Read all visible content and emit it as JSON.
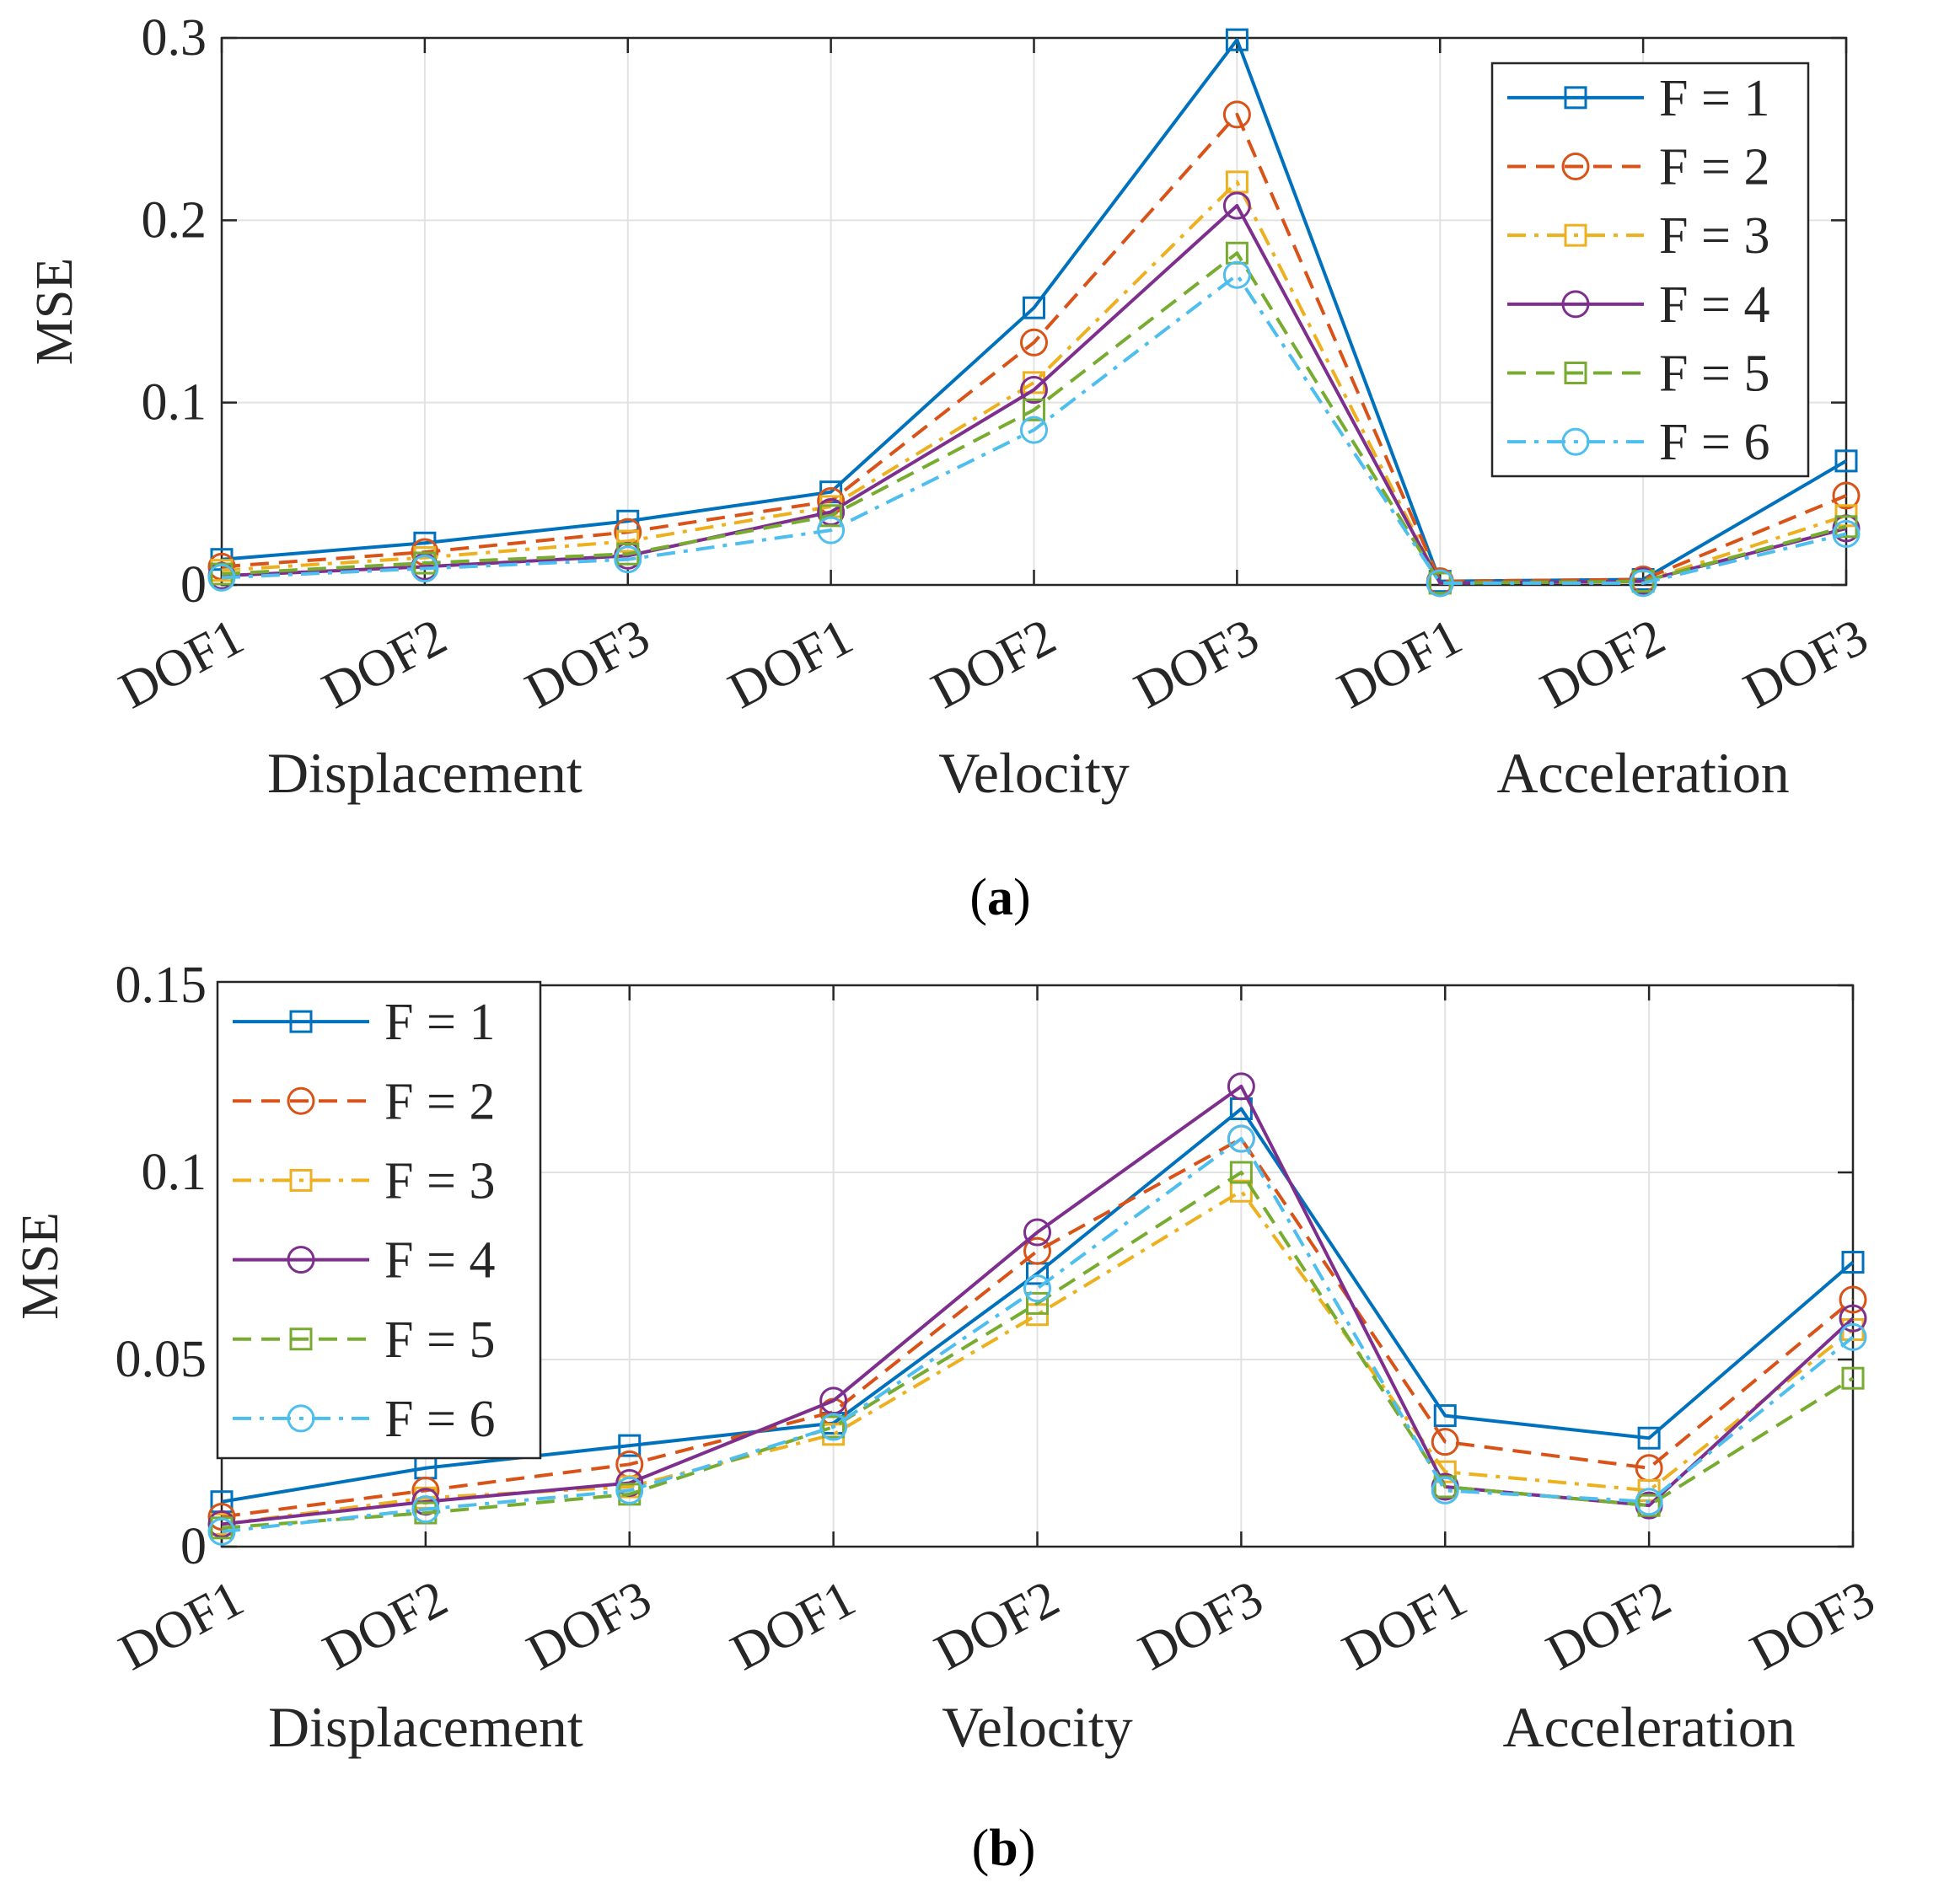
{
  "chart_data": [
    {
      "type": "line",
      "panel": "a",
      "caption_letter": "a",
      "ylabel": "MSE",
      "ylim": [
        0,
        0.3
      ],
      "yticks": [
        0,
        0.1,
        0.2,
        0.3
      ],
      "ytick_labels": [
        "0",
        "0.1",
        "0.2",
        "0.3"
      ],
      "categories": [
        "DOF1",
        "DOF2",
        "DOF3",
        "DOF1",
        "DOF2",
        "DOF3",
        "DOF1",
        "DOF2",
        "DOF3"
      ],
      "groups": [
        "Displacement",
        "Velocity",
        "Acceleration"
      ],
      "grid": true,
      "legend_position": "top-right",
      "series": [
        {
          "name": "F = 1",
          "values": [
            0.014,
            0.023,
            0.035,
            0.051,
            0.152,
            0.299,
            0.002,
            0.003,
            0.068
          ]
        },
        {
          "name": "F = 2",
          "values": [
            0.01,
            0.018,
            0.029,
            0.046,
            0.133,
            0.258,
            0.002,
            0.003,
            0.049
          ]
        },
        {
          "name": "F = 3",
          "values": [
            0.008,
            0.015,
            0.024,
            0.043,
            0.111,
            0.221,
            0.001,
            0.002,
            0.038
          ]
        },
        {
          "name": "F = 4",
          "values": [
            0.005,
            0.01,
            0.016,
            0.04,
            0.107,
            0.208,
            0.001,
            0.002,
            0.031
          ]
        },
        {
          "name": "F = 5",
          "values": [
            0.006,
            0.012,
            0.017,
            0.038,
            0.096,
            0.182,
            0.001,
            0.002,
            0.032
          ]
        },
        {
          "name": "F = 6",
          "values": [
            0.004,
            0.009,
            0.014,
            0.03,
            0.085,
            0.17,
            0.001,
            0.001,
            0.028
          ]
        }
      ]
    },
    {
      "type": "line",
      "panel": "b",
      "caption_letter": "b",
      "ylabel": "MSE",
      "ylim": [
        0,
        0.15
      ],
      "yticks": [
        0,
        0.05,
        0.1,
        0.15
      ],
      "ytick_labels": [
        "0",
        "0.05",
        "0.1",
        "0.15"
      ],
      "categories": [
        "DOF1",
        "DOF2",
        "DOF3",
        "DOF1",
        "DOF2",
        "DOF3",
        "DOF1",
        "DOF2",
        "DOF3"
      ],
      "groups": [
        "Displacement",
        "Velocity",
        "Acceleration"
      ],
      "grid": true,
      "legend_position": "top-left",
      "series": [
        {
          "name": "F = 1",
          "values": [
            0.012,
            0.021,
            0.027,
            0.033,
            0.073,
            0.117,
            0.035,
            0.029,
            0.076
          ]
        },
        {
          "name": "F = 2",
          "values": [
            0.008,
            0.015,
            0.022,
            0.036,
            0.079,
            0.109,
            0.028,
            0.021,
            0.066
          ]
        },
        {
          "name": "F = 3",
          "values": [
            0.006,
            0.013,
            0.016,
            0.03,
            0.062,
            0.095,
            0.02,
            0.015,
            0.058
          ]
        },
        {
          "name": "F = 4",
          "values": [
            0.006,
            0.012,
            0.017,
            0.039,
            0.084,
            0.123,
            0.016,
            0.011,
            0.061
          ]
        },
        {
          "name": "F = 5",
          "values": [
            0.005,
            0.009,
            0.014,
            0.032,
            0.065,
            0.1,
            0.016,
            0.011,
            0.045
          ]
        },
        {
          "name": "F = 6",
          "values": [
            0.004,
            0.01,
            0.015,
            0.032,
            0.069,
            0.109,
            0.015,
            0.012,
            0.056
          ]
        }
      ]
    }
  ],
  "series_styles": [
    {
      "color": "#0072BD",
      "marker": "square",
      "dash": "solid"
    },
    {
      "color": "#D95319",
      "marker": "circle",
      "dash": "dashed"
    },
    {
      "color": "#EDB120",
      "marker": "square",
      "dash": "dashdot"
    },
    {
      "color": "#7E2F8E",
      "marker": "circle",
      "dash": "solid"
    },
    {
      "color": "#77AC30",
      "marker": "square",
      "dash": "dashed"
    },
    {
      "color": "#4DBEEE",
      "marker": "circle",
      "dash": "dashdot"
    }
  ]
}
